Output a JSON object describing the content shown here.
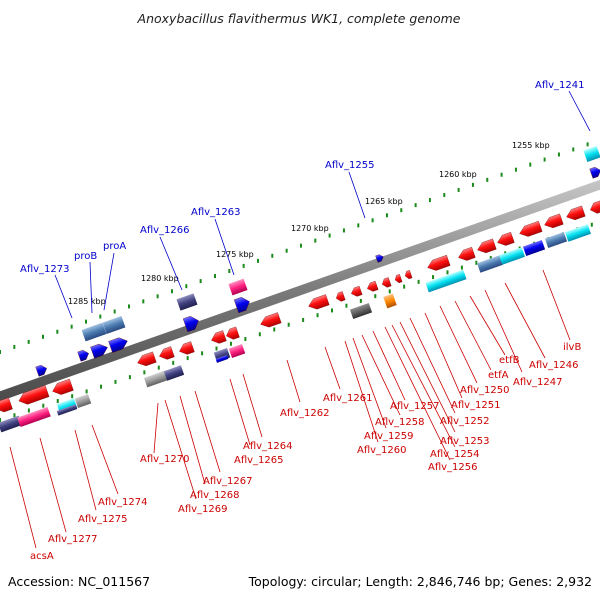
{
  "title": "Anoxybacillus flavithermus WK1, complete genome",
  "footer": {
    "accession": "Accession: NC_011567",
    "topology": "Topology: circular; Length: 2,846,746 bp; Genes: 2,932"
  },
  "colors": {
    "backbone": "#8a8a8a",
    "ruler": "#1a8a1a",
    "plus_label": "#0000cc",
    "minus_label": "#cc0000",
    "forward_cds": "#0000ee",
    "reverse_cds": "#ee0000"
  },
  "ruler_ticks": [
    "1285 kbp",
    "1280 kbp",
    "1275 kbp",
    "1270 kbp",
    "1265 kbp",
    "1260 kbp",
    "1255 kbp"
  ],
  "top_labels": [
    "Aflv_1273",
    "proB",
    "proA",
    "Aflv_1266",
    "Aflv_1263",
    "Aflv_1255",
    "Aflv_1241"
  ],
  "bottom_labels": [
    "acsA",
    "Aflv_1277",
    "Aflv_1275",
    "Aflv_1274",
    "Aflv_1270",
    "Aflv_1269",
    "Aflv_1268",
    "Aflv_1267",
    "Aflv_1265",
    "Aflv_1264",
    "Aflv_1262",
    "Aflv_1261",
    "Aflv_1260",
    "Aflv_1259",
    "Aflv_1258",
    "Aflv_1257",
    "Aflv_1256",
    "Aflv_1254",
    "Aflv_1253",
    "Aflv_1252",
    "Aflv_1251",
    "Aflv_1250",
    "etfA",
    "etfB",
    "Aflv_1247",
    "Aflv_1246",
    "ilvB"
  ]
}
